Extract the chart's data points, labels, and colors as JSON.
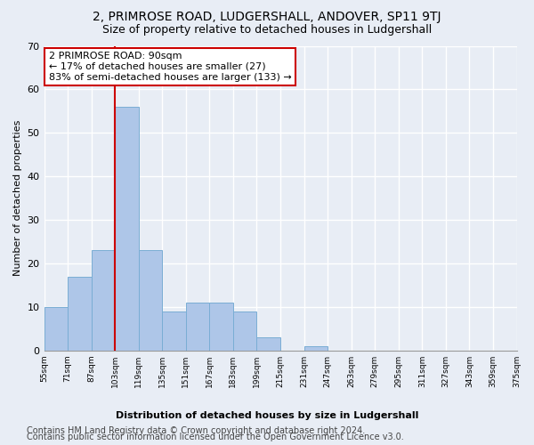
{
  "title": "2, PRIMROSE ROAD, LUDGERSHALL, ANDOVER, SP11 9TJ",
  "subtitle": "Size of property relative to detached houses in Ludgershall",
  "xlabel_bottom": "Distribution of detached houses by size in Ludgershall",
  "ylabel": "Number of detached properties",
  "bar_values": [
    10,
    17,
    23,
    56,
    23,
    9,
    11,
    11,
    9,
    3,
    0,
    1,
    0,
    0,
    0,
    0,
    0,
    0,
    0,
    0
  ],
  "bin_labels": [
    "55sqm",
    "71sqm",
    "87sqm",
    "103sqm",
    "119sqm",
    "135sqm",
    "151sqm",
    "167sqm",
    "183sqm",
    "199sqm",
    "215sqm",
    "231sqm",
    "247sqm",
    "263sqm",
    "279sqm",
    "295sqm",
    "311sqm",
    "327sqm",
    "343sqm",
    "359sqm",
    "375sqm"
  ],
  "bar_color": "#aec6e8",
  "bar_edge_color": "#7aadd4",
  "highlight_line_color": "#cc0000",
  "highlight_line_bin": 3,
  "annotation_text": "2 PRIMROSE ROAD: 90sqm\n← 17% of detached houses are smaller (27)\n83% of semi-detached houses are larger (133) →",
  "annotation_box_color": "#ffffff",
  "annotation_box_edge_color": "#cc0000",
  "ylim": [
    0,
    70
  ],
  "yticks": [
    0,
    10,
    20,
    30,
    40,
    50,
    60,
    70
  ],
  "footer_line1": "Contains HM Land Registry data © Crown copyright and database right 2024.",
  "footer_line2": "Contains public sector information licensed under the Open Government Licence v3.0.",
  "background_color": "#e8edf5",
  "plot_background_color": "#e8edf5",
  "grid_color": "#ffffff",
  "title_fontsize": 10,
  "subtitle_fontsize": 9,
  "annotation_fontsize": 8,
  "footer_fontsize": 7
}
